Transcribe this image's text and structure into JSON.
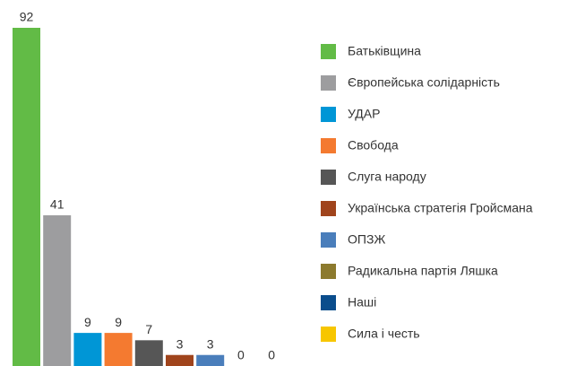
{
  "chart_data": {
    "type": "bar",
    "categories": [
      "Батьківщина",
      "Європейська солідарність",
      "УДАР",
      "Свобода",
      "Слуга народу",
      "Українська стратегія Гройсмана",
      "ОПЗЖ",
      "Радикальна партія Ляшка",
      "Наші",
      "Сила і честь"
    ],
    "values": [
      92,
      41,
      9,
      9,
      7,
      3,
      3,
      0,
      0,
      null
    ],
    "colors": [
      "#62bb46",
      "#9d9d9f",
      "#0096d6",
      "#f47a30",
      "#565656",
      "#a0441c",
      "#4a7ebb",
      "#8c7a2e",
      "#0a4d8c",
      "#f7c600"
    ],
    "legend": "right"
  }
}
